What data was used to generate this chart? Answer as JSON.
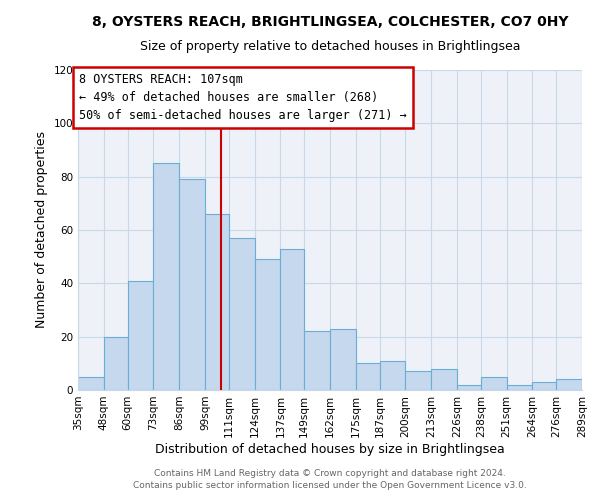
{
  "title1": "8, OYSTERS REACH, BRIGHTLINGSEA, COLCHESTER, CO7 0HY",
  "title2": "Size of property relative to detached houses in Brightlingsea",
  "xlabel": "Distribution of detached houses by size in Brightlingsea",
  "ylabel": "Number of detached properties",
  "footer1": "Contains HM Land Registry data © Crown copyright and database right 2024.",
  "footer2": "Contains public sector information licensed under the Open Government Licence v3.0.",
  "bin_labels": [
    "35sqm",
    "48sqm",
    "60sqm",
    "73sqm",
    "86sqm",
    "99sqm",
    "111sqm",
    "124sqm",
    "137sqm",
    "149sqm",
    "162sqm",
    "175sqm",
    "187sqm",
    "200sqm",
    "213sqm",
    "226sqm",
    "238sqm",
    "251sqm",
    "264sqm",
    "276sqm",
    "289sqm"
  ],
  "bar_heights": [
    5,
    20,
    41,
    85,
    79,
    66,
    57,
    49,
    53,
    22,
    23,
    10,
    11,
    7,
    8,
    2,
    5,
    2,
    3,
    4
  ],
  "bar_color": "#c5d8ed",
  "bar_edge_color": "#6aaed6",
  "grid_color": "#c8d8e8",
  "bg_color": "#eef2f8",
  "vline_color": "#cc0000",
  "box_text_line1": "8 OYSTERS REACH: 107sqm",
  "box_text_line2": "← 49% of detached houses are smaller (268)",
  "box_text_line3": "50% of semi-detached houses are larger (271) →",
  "box_edge_color": "#cc0000",
  "ylim": [
    0,
    120
  ],
  "yticks": [
    0,
    20,
    40,
    60,
    80,
    100,
    120
  ],
  "bin_edges": [
    35,
    48,
    60,
    73,
    86,
    99,
    111,
    124,
    137,
    149,
    162,
    175,
    187,
    200,
    213,
    226,
    238,
    251,
    264,
    276,
    289
  ],
  "vline_x": 107,
  "title1_fontsize": 10,
  "title2_fontsize": 9,
  "ylabel_fontsize": 9,
  "xlabel_fontsize": 9,
  "footer_fontsize": 6.5,
  "tick_fontsize": 7.5
}
